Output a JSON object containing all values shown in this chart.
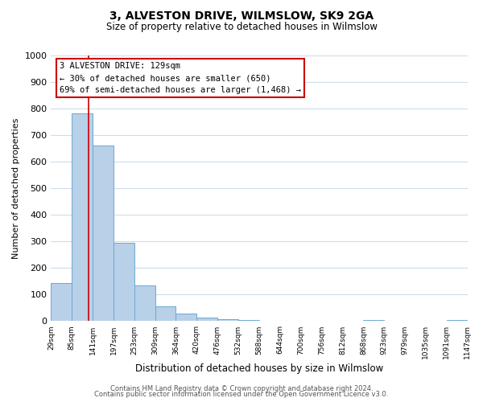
{
  "title": "3, ALVESTON DRIVE, WILMSLOW, SK9 2GA",
  "subtitle": "Size of property relative to detached houses in Wilmslow",
  "xlabel": "Distribution of detached houses by size in Wilmslow",
  "ylabel": "Number of detached properties",
  "bar_edges": [
    29,
    85,
    141,
    197,
    253,
    309,
    364,
    420,
    476,
    532,
    588,
    644,
    700,
    756,
    812,
    868,
    923,
    979,
    1035,
    1091,
    1147
  ],
  "bar_heights": [
    144,
    783,
    660,
    294,
    135,
    57,
    30,
    15,
    8,
    3,
    2,
    0,
    1,
    0,
    0,
    5,
    0,
    0,
    0,
    5
  ],
  "bar_color": "#b8d0e8",
  "bar_edge_color": "#6aaad4",
  "vline_x": 129,
  "vline_color": "#cc0000",
  "annotation_title": "3 ALVESTON DRIVE: 129sqm",
  "annotation_line1": "← 30% of detached houses are smaller (650)",
  "annotation_line2": "69% of semi-detached houses are larger (1,468) →",
  "annotation_box_edgecolor": "#cc0000",
  "annotation_bg": "#ffffff",
  "ylim": [
    0,
    1000
  ],
  "yticks": [
    0,
    100,
    200,
    300,
    400,
    500,
    600,
    700,
    800,
    900,
    1000
  ],
  "tick_labels": [
    "29sqm",
    "85sqm",
    "141sqm",
    "197sqm",
    "253sqm",
    "309sqm",
    "364sqm",
    "420sqm",
    "476sqm",
    "532sqm",
    "588sqm",
    "644sqm",
    "700sqm",
    "756sqm",
    "812sqm",
    "868sqm",
    "923sqm",
    "979sqm",
    "1035sqm",
    "1091sqm",
    "1147sqm"
  ],
  "footer1": "Contains HM Land Registry data © Crown copyright and database right 2024.",
  "footer2": "Contains public sector information licensed under the Open Government Licence v3.0.",
  "background_color": "#ffffff",
  "grid_color": "#ccdcec"
}
